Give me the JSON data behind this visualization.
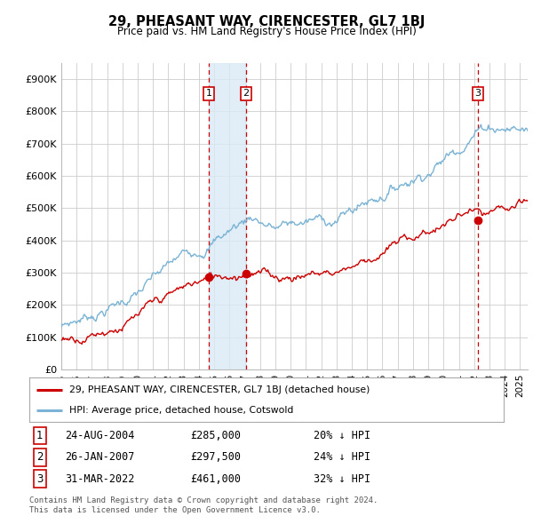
{
  "title": "29, PHEASANT WAY, CIRENCESTER, GL7 1BJ",
  "subtitle": "Price paid vs. HM Land Registry's House Price Index (HPI)",
  "ylabel_ticks": [
    "£0",
    "£100K",
    "£200K",
    "£300K",
    "£400K",
    "£500K",
    "£600K",
    "£700K",
    "£800K",
    "£900K"
  ],
  "ytick_values": [
    0,
    100000,
    200000,
    300000,
    400000,
    500000,
    600000,
    700000,
    800000,
    900000
  ],
  "ylim": [
    0,
    950000
  ],
  "xlim_start": 1995.0,
  "xlim_end": 2025.5,
  "sale_dates": [
    2004.65,
    2007.08,
    2022.25
  ],
  "sale_prices": [
    285000,
    297500,
    461000
  ],
  "sale_labels": [
    "1",
    "2",
    "3"
  ],
  "sale_label_dates": [
    "24-AUG-2004",
    "26-JAN-2007",
    "31-MAR-2022"
  ],
  "sale_label_prices": [
    "£285,000",
    "£297,500",
    "£461,000"
  ],
  "sale_label_hpi": [
    "20% ↓ HPI",
    "24% ↓ HPI",
    "32% ↓ HPI"
  ],
  "hpi_color": "#7ab3d4",
  "price_color": "#cc0000",
  "vline_color": "#cc0000",
  "shade_color": "#daeaf5",
  "legend_label_price": "29, PHEASANT WAY, CIRENCESTER, GL7 1BJ (detached house)",
  "legend_label_hpi": "HPI: Average price, detached house, Cotswold",
  "footer": "Contains HM Land Registry data © Crown copyright and database right 2024.\nThis data is licensed under the Open Government Licence v3.0.",
  "background_color": "#ffffff",
  "grid_color": "#cccccc"
}
